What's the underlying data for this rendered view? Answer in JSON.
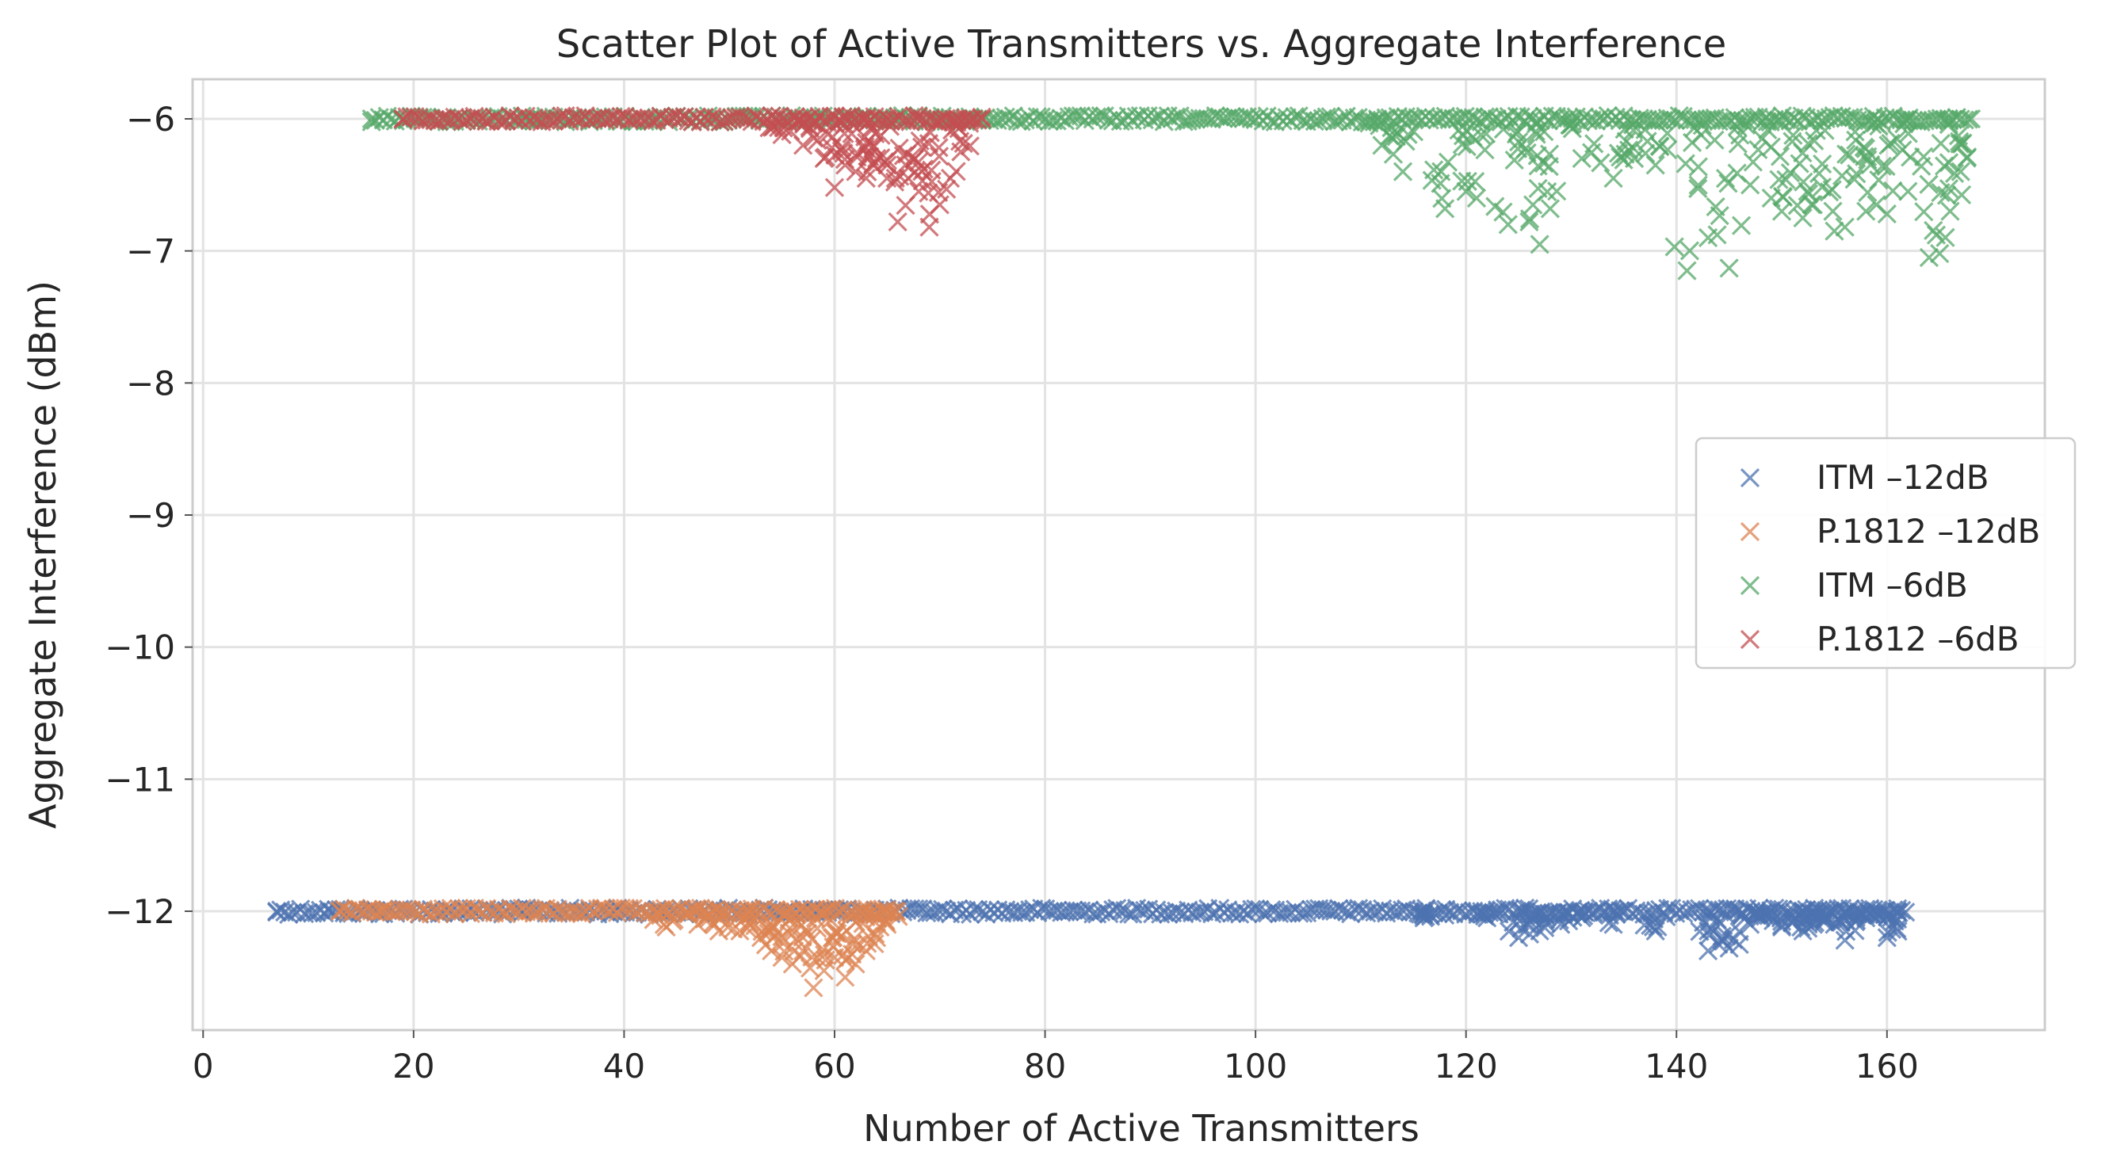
{
  "chart_data": {
    "type": "scatter",
    "title": "Scatter Plot of Active Transmitters vs. Aggregate Interference",
    "xlabel": "Number of Active Transmitters",
    "ylabel": "Aggregate Interference (dBm)",
    "xlim": [
      -1,
      175
    ],
    "ylim": [
      -12.9,
      -5.7
    ],
    "xticks": [
      0,
      20,
      40,
      60,
      80,
      100,
      120,
      140,
      160
    ],
    "xtick_labels": [
      "0",
      "20",
      "40",
      "60",
      "80",
      "100",
      "120",
      "140",
      "160"
    ],
    "yticks": [
      -6,
      -7,
      -8,
      -9,
      -10,
      -11,
      -12
    ],
    "ytick_labels": [
      "−6",
      "−7",
      "−8",
      "−9",
      "−10",
      "−11",
      "−12"
    ],
    "grid": true,
    "marker": "x",
    "legend": {
      "position": "center-right"
    },
    "series": [
      {
        "name": "ITM -12dB",
        "label": "ITM –12dB",
        "color": "#4c72b0",
        "x_range": [
          7,
          162
        ],
        "baseline": -12,
        "outliers": [
          [
            7,
            -12.0
          ],
          [
            12,
            -12.0
          ],
          [
            15,
            -12.0
          ],
          [
            116,
            -12.05
          ],
          [
            118,
            -12.03
          ],
          [
            122,
            -12.05
          ],
          [
            125,
            -12.2
          ],
          [
            126,
            -12.1
          ],
          [
            127,
            -12.15
          ],
          [
            129,
            -12.1
          ],
          [
            131,
            -12.05
          ],
          [
            134,
            -12.1
          ],
          [
            138,
            -12.15
          ],
          [
            143,
            -12.3
          ],
          [
            144,
            -12.25
          ],
          [
            145,
            -12.28
          ],
          [
            147,
            -12.1
          ],
          [
            148,
            -12.05
          ],
          [
            150,
            -12.12
          ],
          [
            151,
            -12.08
          ],
          [
            152,
            -12.15
          ],
          [
            153,
            -12.1
          ],
          [
            154,
            -12.05
          ],
          [
            155,
            -12.1
          ],
          [
            156,
            -12.22
          ],
          [
            157,
            -12.08
          ],
          [
            158,
            -12.05
          ],
          [
            159,
            -12.0
          ],
          [
            160,
            -12.2
          ],
          [
            161,
            -12.06
          ]
        ]
      },
      {
        "name": "P.1812 -12dB",
        "label": "P.1812 –12dB",
        "color": "#dd8452",
        "x_range": [
          13,
          66
        ],
        "baseline": -12,
        "outliers": [
          [
            13,
            -12.0
          ],
          [
            17,
            -12.0
          ],
          [
            44,
            -12.12
          ],
          [
            47,
            -12.1
          ],
          [
            49,
            -12.15
          ],
          [
            51,
            -12.15
          ],
          [
            53,
            -12.2
          ],
          [
            54,
            -12.3
          ],
          [
            55,
            -12.35
          ],
          [
            56,
            -12.4
          ],
          [
            57,
            -12.3
          ],
          [
            58,
            -12.58
          ],
          [
            59,
            -12.45
          ],
          [
            60,
            -12.35
          ],
          [
            61,
            -12.5
          ],
          [
            62,
            -12.4
          ],
          [
            63,
            -12.3
          ],
          [
            64,
            -12.2
          ],
          [
            65,
            -12.1
          ]
        ]
      },
      {
        "name": "ITM -6dB",
        "label": "ITM –6dB",
        "color": "#55a868",
        "x_range": [
          16,
          168
        ],
        "baseline": -6,
        "outliers": [
          [
            16,
            -6.0
          ],
          [
            23,
            -6.0
          ],
          [
            112,
            -6.2
          ],
          [
            114,
            -6.4
          ],
          [
            118,
            -6.68
          ],
          [
            120,
            -6.55
          ],
          [
            121,
            -6.6
          ],
          [
            124,
            -6.8
          ],
          [
            126,
            -6.78
          ],
          [
            127,
            -6.95
          ],
          [
            128,
            -6.68
          ],
          [
            131,
            -6.3
          ],
          [
            134,
            -6.45
          ],
          [
            136,
            -6.3
          ],
          [
            138,
            -6.35
          ],
          [
            141,
            -7.15
          ],
          [
            143,
            -6.9
          ],
          [
            145,
            -7.13
          ],
          [
            147,
            -6.5
          ],
          [
            149,
            -6.6
          ],
          [
            150,
            -6.7
          ],
          [
            152,
            -6.75
          ],
          [
            153,
            -6.65
          ],
          [
            155,
            -6.85
          ],
          [
            156,
            -6.82
          ],
          [
            158,
            -6.7
          ],
          [
            159,
            -6.65
          ],
          [
            160,
            -6.72
          ],
          [
            162,
            -6.55
          ],
          [
            164,
            -7.05
          ],
          [
            165,
            -7.02
          ],
          [
            166,
            -6.7
          ],
          [
            167,
            -6.4
          ],
          [
            168,
            -6.0
          ]
        ]
      },
      {
        "name": "P.1812 -6dB",
        "label": "P.1812 –6dB",
        "color": "#c44e52",
        "x_range": [
          19,
          74
        ],
        "baseline": -6,
        "outliers": [
          [
            19,
            -6.0
          ],
          [
            55,
            -6.12
          ],
          [
            57,
            -6.2
          ],
          [
            59,
            -6.3
          ],
          [
            60,
            -6.52
          ],
          [
            61,
            -6.35
          ],
          [
            62,
            -6.4
          ],
          [
            63,
            -6.45
          ],
          [
            64,
            -6.3
          ],
          [
            65,
            -6.35
          ],
          [
            66,
            -6.78
          ],
          [
            67,
            -6.45
          ],
          [
            68,
            -6.55
          ],
          [
            69,
            -6.82
          ],
          [
            70,
            -6.65
          ],
          [
            71,
            -6.45
          ],
          [
            72,
            -6.25
          ],
          [
            73,
            -6.0
          ],
          [
            74,
            -6.0
          ]
        ]
      }
    ]
  }
}
